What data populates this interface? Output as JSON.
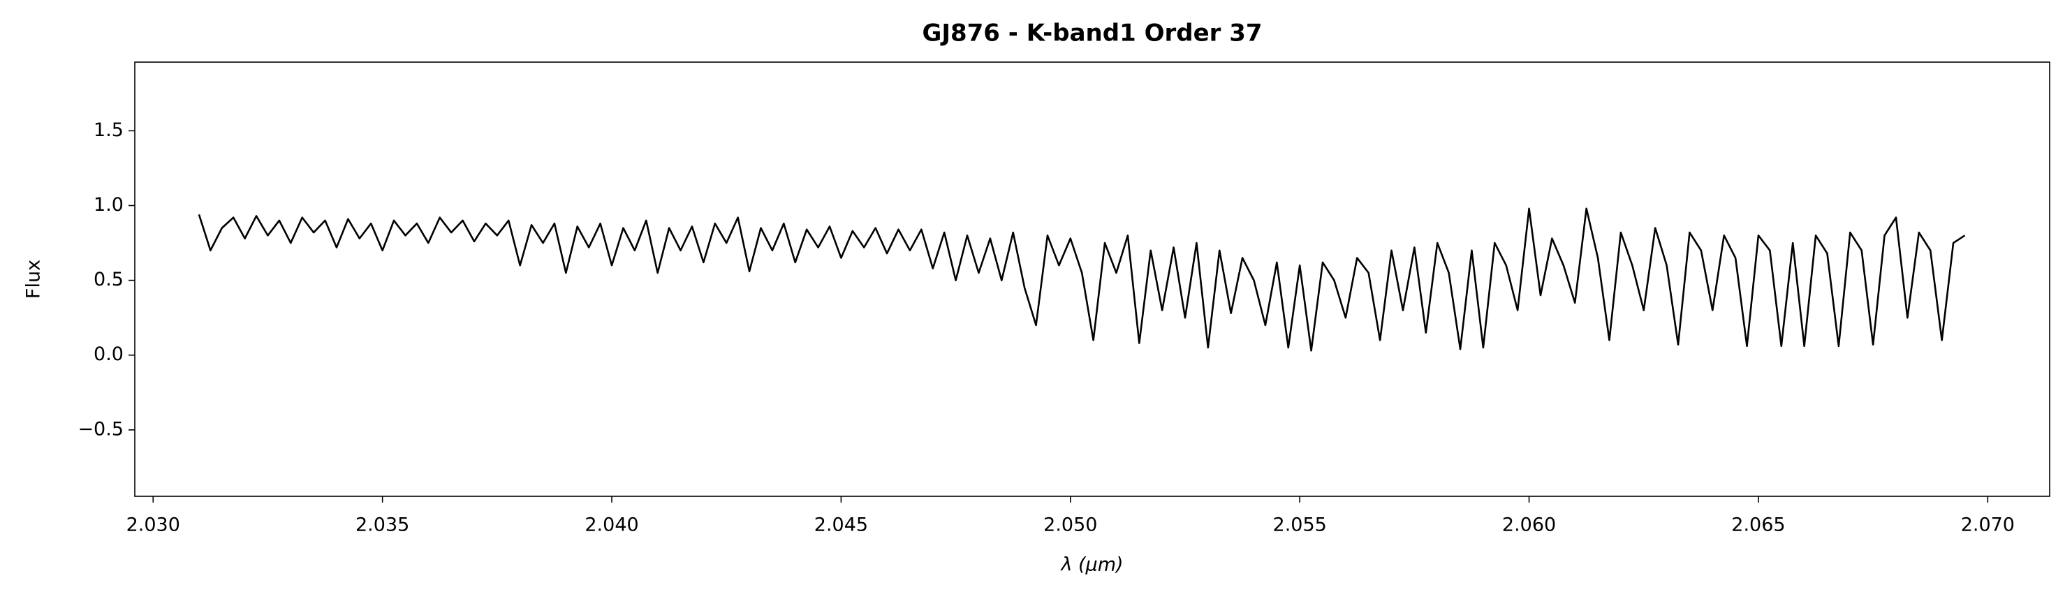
{
  "chart_data": {
    "type": "line",
    "title": "GJ876 - K-band1 Order 37",
    "xlabel": "λ (μm)",
    "ylabel": "Flux",
    "xlim": [
      2.0296,
      2.07135
    ],
    "ylim": [
      -0.944,
      1.959
    ],
    "xticks": [
      {
        "value": 2.03,
        "label": "2.030"
      },
      {
        "value": 2.035,
        "label": "2.035"
      },
      {
        "value": 2.04,
        "label": "2.040"
      },
      {
        "value": 2.045,
        "label": "2.045"
      },
      {
        "value": 2.05,
        "label": "2.050"
      },
      {
        "value": 2.055,
        "label": "2.055"
      },
      {
        "value": 2.06,
        "label": "2.060"
      },
      {
        "value": 2.065,
        "label": "2.065"
      },
      {
        "value": 2.07,
        "label": "2.070"
      }
    ],
    "yticks": [
      {
        "value": -0.5,
        "label": "−0.5"
      },
      {
        "value": 0,
        "label": "0.0"
      },
      0.5,
      {
        "value": 1,
        "label": "1.0"
      },
      1.5
    ],
    "grid": false,
    "series": [
      {
        "color": "#000000",
        "x": [
          2.031,
          2.03125,
          2.0315,
          2.03175,
          2.032,
          2.03225,
          2.0325,
          2.03275,
          2.033,
          2.03325,
          2.0335,
          2.03375,
          2.034,
          2.03425,
          2.0345,
          2.03475,
          2.035,
          2.03525,
          2.0355,
          2.03575,
          2.036,
          2.03625,
          2.0365,
          2.03675,
          2.037,
          2.03725,
          2.0375,
          2.03775,
          2.038,
          2.03825,
          2.0385,
          2.03875,
          2.039,
          2.03925,
          2.0395,
          2.03975,
          2.04,
          2.04025,
          2.0405,
          2.04075,
          2.041,
          2.04125,
          2.0415,
          2.04175,
          2.042,
          2.04225,
          2.0425,
          2.04275,
          2.043,
          2.04325,
          2.0435,
          2.04375,
          2.044,
          2.04425,
          2.0445,
          2.04475,
          2.045,
          2.04525,
          2.0455,
          2.04575,
          2.046,
          2.04625,
          2.0465,
          2.04675,
          2.047,
          2.04725,
          2.0475,
          2.04775,
          2.048,
          2.04825,
          2.0485,
          2.04875,
          2.049,
          2.04925,
          2.0495,
          2.04975,
          2.05,
          2.05025,
          2.0505,
          2.05075,
          2.051,
          2.05125,
          2.0515,
          2.05175,
          2.052,
          2.05225,
          2.0525,
          2.05275,
          2.053,
          2.05325,
          2.0535,
          2.05375,
          2.054,
          2.05425,
          2.0545,
          2.05475,
          2.055,
          2.05525,
          2.0555,
          2.05575,
          2.056,
          2.05625,
          2.0565,
          2.05675,
          2.057,
          2.05725,
          2.0575,
          2.05775,
          2.058,
          2.05825,
          2.0585,
          2.05875,
          2.059,
          2.05925,
          2.0595,
          2.05975,
          2.06,
          2.06025,
          2.0605,
          2.06075,
          2.061,
          2.06125,
          2.0615,
          2.06175,
          2.062,
          2.06225,
          2.0625,
          2.06275,
          2.063,
          2.06325,
          2.0635,
          2.06375,
          2.064,
          2.06425,
          2.0645,
          2.06475,
          2.065,
          2.06525,
          2.0655,
          2.06575,
          2.066,
          2.06625,
          2.0665,
          2.06675,
          2.067,
          2.06725,
          2.0675,
          2.06775,
          2.068,
          2.06825,
          2.0685,
          2.06875,
          2.069,
          2.06925,
          2.0695
        ],
        "values": [
          0.94,
          0.7,
          0.85,
          0.92,
          0.78,
          0.93,
          0.8,
          0.9,
          0.75,
          0.92,
          0.82,
          0.9,
          0.72,
          0.91,
          0.78,
          0.88,
          0.7,
          0.9,
          0.8,
          0.88,
          0.75,
          0.92,
          0.82,
          0.9,
          0.76,
          0.88,
          0.8,
          0.9,
          0.6,
          0.87,
          0.75,
          0.88,
          0.55,
          0.86,
          0.72,
          0.88,
          0.6,
          0.85,
          0.7,
          0.9,
          0.55,
          0.85,
          0.7,
          0.86,
          0.62,
          0.88,
          0.75,
          0.92,
          0.56,
          0.85,
          0.7,
          0.88,
          0.62,
          0.84,
          0.72,
          0.86,
          0.65,
          0.83,
          0.72,
          0.85,
          0.68,
          0.84,
          0.7,
          0.84,
          0.58,
          0.82,
          0.5,
          0.8,
          0.55,
          0.78,
          0.5,
          0.82,
          0.45,
          0.2,
          0.8,
          0.6,
          0.78,
          0.55,
          0.1,
          0.75,
          0.55,
          0.8,
          0.08,
          0.7,
          0.3,
          0.72,
          0.25,
          0.75,
          0.05,
          0.7,
          0.28,
          0.65,
          0.5,
          0.2,
          0.62,
          0.05,
          0.6,
          0.03,
          0.62,
          0.5,
          0.25,
          0.65,
          0.55,
          0.1,
          0.7,
          0.3,
          0.72,
          0.15,
          0.75,
          0.55,
          0.04,
          0.7,
          0.05,
          0.75,
          0.6,
          0.3,
          0.98,
          0.4,
          0.78,
          0.6,
          0.35,
          0.98,
          0.65,
          0.1,
          0.82,
          0.6,
          0.3,
          0.85,
          0.6,
          0.07,
          0.82,
          0.7,
          0.3,
          0.8,
          0.65,
          0.06,
          0.8,
          0.7,
          0.06,
          0.75,
          0.06,
          0.8,
          0.68,
          0.06,
          0.82,
          0.7,
          0.07,
          0.8,
          0.92,
          0.25,
          0.82,
          0.7,
          0.1,
          0.75,
          0.8
        ]
      }
    ]
  }
}
